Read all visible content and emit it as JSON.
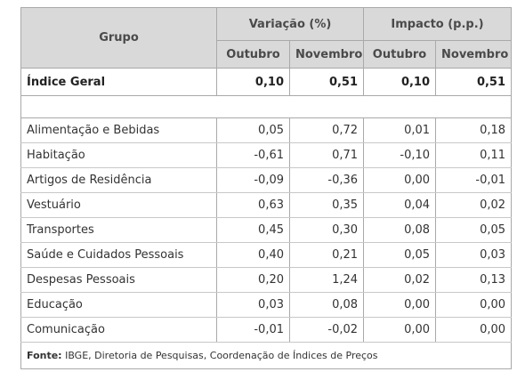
{
  "table": {
    "group_header": "Grupo",
    "variacao_header": "Variação (%)",
    "impacto_header": "Impacto (p.p.)",
    "sub_headers": [
      "Outubro",
      "Novembro",
      "Outubro",
      "Novembro"
    ],
    "geral": {
      "label": "Índice Geral",
      "values": [
        "0,10",
        "0,51",
        "0,10",
        "0,51"
      ]
    },
    "rows": [
      {
        "label": "Alimentação e Bebidas",
        "values": [
          "0,05",
          "0,72",
          "0,01",
          "0,18"
        ]
      },
      {
        "label": "Habitação",
        "values": [
          "-0,61",
          "0,71",
          "-0,10",
          "0,11"
        ]
      },
      {
        "label": "Artigos de Residência",
        "values": [
          "-0,09",
          "-0,36",
          "0,00",
          "-0,01"
        ]
      },
      {
        "label": "Vestuário",
        "values": [
          "0,63",
          "0,35",
          "0,04",
          "0,02"
        ]
      },
      {
        "label": "Transportes",
        "values": [
          "0,45",
          "0,30",
          "0,08",
          "0,05"
        ]
      },
      {
        "label": "Saúde e Cuidados Pessoais",
        "values": [
          "0,40",
          "0,21",
          "0,05",
          "0,03"
        ]
      },
      {
        "label": "Despesas Pessoais",
        "values": [
          "0,20",
          "1,24",
          "0,02",
          "0,13"
        ]
      },
      {
        "label": "Educação",
        "values": [
          "0,03",
          "0,08",
          "0,00",
          "0,00"
        ]
      },
      {
        "label": "Comunicação",
        "values": [
          "-0,01",
          "-0,02",
          "0,00",
          "0,00"
        ]
      }
    ],
    "footer": {
      "label": "Fonte:",
      "text": " IBGE, Diretoria de Pesquisas, Coordenação de Índices de Preços"
    }
  }
}
